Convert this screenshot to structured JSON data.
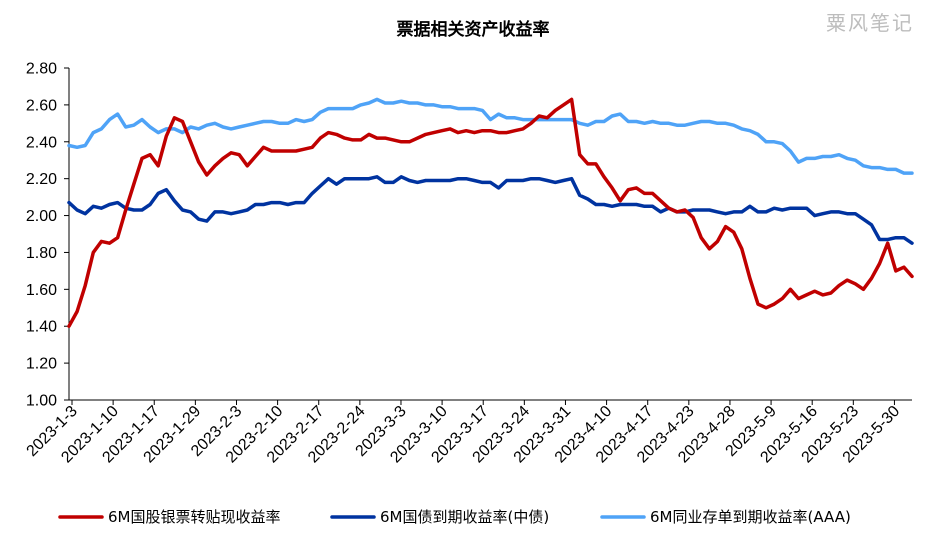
{
  "chart_data": {
    "type": "line",
    "title": "票据相关资产收益率",
    "watermark": "粟风笔记",
    "xlabel": "",
    "ylabel": "",
    "ylim": [
      1.0,
      2.8
    ],
    "yticks": [
      "1.00",
      "1.20",
      "1.40",
      "1.60",
      "1.80",
      "2.00",
      "2.20",
      "2.40",
      "2.60",
      "2.80"
    ],
    "x_tick_labels": [
      "2023-1-3",
      "2023-1-10",
      "2023-1-17",
      "2023-1-29",
      "2023-2-3",
      "2023-2-10",
      "2023-2-17",
      "2023-2-24",
      "2023-3-3",
      "2023-3-10",
      "2023-3-17",
      "2023-3-24",
      "2023-3-31",
      "2023-4-10",
      "2023-4-17",
      "2023-4-23",
      "2023-4-28",
      "2023-5-9",
      "2023-5-16",
      "2023-5-23",
      "2023-5-30"
    ],
    "legend_position": "bottom",
    "grid": false,
    "series": [
      {
        "name": "6M国股银票转贴现收益率",
        "color": "#c00000",
        "values": [
          1.4,
          1.48,
          1.62,
          1.8,
          1.86,
          1.85,
          1.88,
          2.03,
          2.17,
          2.31,
          2.33,
          2.27,
          2.43,
          2.53,
          2.51,
          2.4,
          2.29,
          2.22,
          2.27,
          2.31,
          2.34,
          2.33,
          2.27,
          2.32,
          2.37,
          2.35,
          2.35,
          2.35,
          2.35,
          2.36,
          2.37,
          2.42,
          2.45,
          2.44,
          2.42,
          2.41,
          2.41,
          2.44,
          2.42,
          2.42,
          2.41,
          2.4,
          2.4,
          2.42,
          2.44,
          2.45,
          2.46,
          2.47,
          2.45,
          2.46,
          2.45,
          2.46,
          2.46,
          2.45,
          2.45,
          2.46,
          2.47,
          2.5,
          2.54,
          2.53,
          2.57,
          2.6,
          2.63,
          2.33,
          2.28,
          2.28,
          2.21,
          2.15,
          2.08,
          2.14,
          2.15,
          2.12,
          2.12,
          2.08,
          2.04,
          2.02,
          2.03,
          1.99,
          1.88,
          1.82,
          1.86,
          1.94,
          1.91,
          1.82,
          1.66,
          1.52,
          1.5,
          1.52,
          1.55,
          1.6,
          1.55,
          1.57,
          1.59,
          1.57,
          1.58,
          1.62,
          1.65,
          1.63,
          1.6,
          1.66,
          1.74,
          1.85,
          1.7,
          1.72,
          1.67
        ]
      },
      {
        "name": "6M国债到期收益率(中债)",
        "color": "#0033a0",
        "values": [
          2.07,
          2.03,
          2.01,
          2.05,
          2.04,
          2.06,
          2.07,
          2.04,
          2.03,
          2.03,
          2.06,
          2.12,
          2.14,
          2.08,
          2.03,
          2.02,
          1.98,
          1.97,
          2.02,
          2.02,
          2.01,
          2.02,
          2.03,
          2.06,
          2.06,
          2.07,
          2.07,
          2.06,
          2.07,
          2.07,
          2.12,
          2.16,
          2.2,
          2.17,
          2.2,
          2.2,
          2.2,
          2.2,
          2.21,
          2.18,
          2.18,
          2.21,
          2.19,
          2.18,
          2.19,
          2.19,
          2.19,
          2.19,
          2.2,
          2.2,
          2.19,
          2.18,
          2.18,
          2.15,
          2.19,
          2.19,
          2.19,
          2.2,
          2.2,
          2.19,
          2.18,
          2.19,
          2.2,
          2.11,
          2.09,
          2.06,
          2.06,
          2.05,
          2.06,
          2.06,
          2.06,
          2.05,
          2.05,
          2.02,
          2.04,
          2.02,
          2.02,
          2.03,
          2.03,
          2.03,
          2.02,
          2.01,
          2.02,
          2.02,
          2.05,
          2.02,
          2.02,
          2.04,
          2.03,
          2.04,
          2.04,
          2.04,
          2.0,
          2.01,
          2.02,
          2.02,
          2.01,
          2.01,
          1.98,
          1.95,
          1.87,
          1.87,
          1.88,
          1.88,
          1.85
        ]
      },
      {
        "name": "6M同业存单到期收益率(AAA)",
        "color": "#4fa3f7",
        "values": [
          2.38,
          2.37,
          2.38,
          2.45,
          2.47,
          2.52,
          2.55,
          2.48,
          2.49,
          2.52,
          2.48,
          2.45,
          2.47,
          2.47,
          2.45,
          2.48,
          2.47,
          2.49,
          2.5,
          2.48,
          2.47,
          2.48,
          2.49,
          2.5,
          2.51,
          2.51,
          2.5,
          2.5,
          2.52,
          2.51,
          2.52,
          2.56,
          2.58,
          2.58,
          2.58,
          2.58,
          2.6,
          2.61,
          2.63,
          2.61,
          2.61,
          2.62,
          2.61,
          2.61,
          2.6,
          2.6,
          2.59,
          2.59,
          2.58,
          2.58,
          2.58,
          2.57,
          2.52,
          2.55,
          2.53,
          2.53,
          2.52,
          2.52,
          2.52,
          2.52,
          2.52,
          2.52,
          2.52,
          2.5,
          2.49,
          2.51,
          2.51,
          2.54,
          2.55,
          2.51,
          2.51,
          2.5,
          2.51,
          2.5,
          2.5,
          2.49,
          2.49,
          2.5,
          2.51,
          2.51,
          2.5,
          2.5,
          2.49,
          2.47,
          2.46,
          2.44,
          2.4,
          2.4,
          2.39,
          2.35,
          2.29,
          2.31,
          2.31,
          2.32,
          2.32,
          2.33,
          2.31,
          2.3,
          2.27,
          2.26,
          2.26,
          2.25,
          2.25,
          2.23,
          2.23
        ]
      }
    ]
  }
}
